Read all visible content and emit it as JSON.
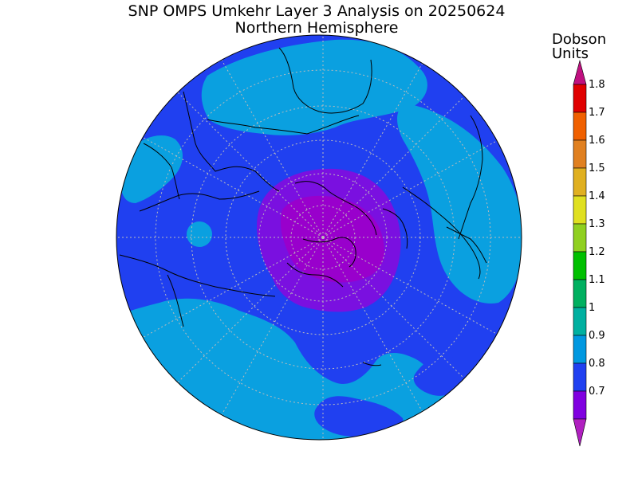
{
  "title": "SNP OMPS Umkehr Layer 3 Analysis on 20250624",
  "subtitle": "Northern Hemisphere",
  "colorbar": {
    "units_line1": "Dobson",
    "units_line2": "Units",
    "labels": [
      "1.8",
      "1.7",
      "1.6",
      "1.5",
      "1.4",
      "1.3",
      "1.2",
      "1.1",
      "1",
      "0.9",
      "0.8",
      "0.7"
    ],
    "colors": [
      "#e00000",
      "#f06000",
      "#e08020",
      "#e0b020",
      "#e0e020",
      "#90d020",
      "#00c000",
      "#00b060",
      "#00b0a0",
      "#0098e0",
      "#2040f0",
      "#8000e0"
    ],
    "low_arrow_color": "#b020c0",
    "high_arrow_color": "#c01080"
  },
  "map": {
    "projection": "north-polar-stereographic",
    "ocean_fill": "#2040f0",
    "regions": [
      {
        "name": "0.7 band",
        "color": "#9900cc"
      },
      {
        "name": "0.8 band",
        "color": "#7a10e0"
      },
      {
        "name": "0.9 band",
        "color": "#2040f0"
      },
      {
        "name": "1.0 band",
        "color": "#0aa0e0"
      }
    ]
  }
}
